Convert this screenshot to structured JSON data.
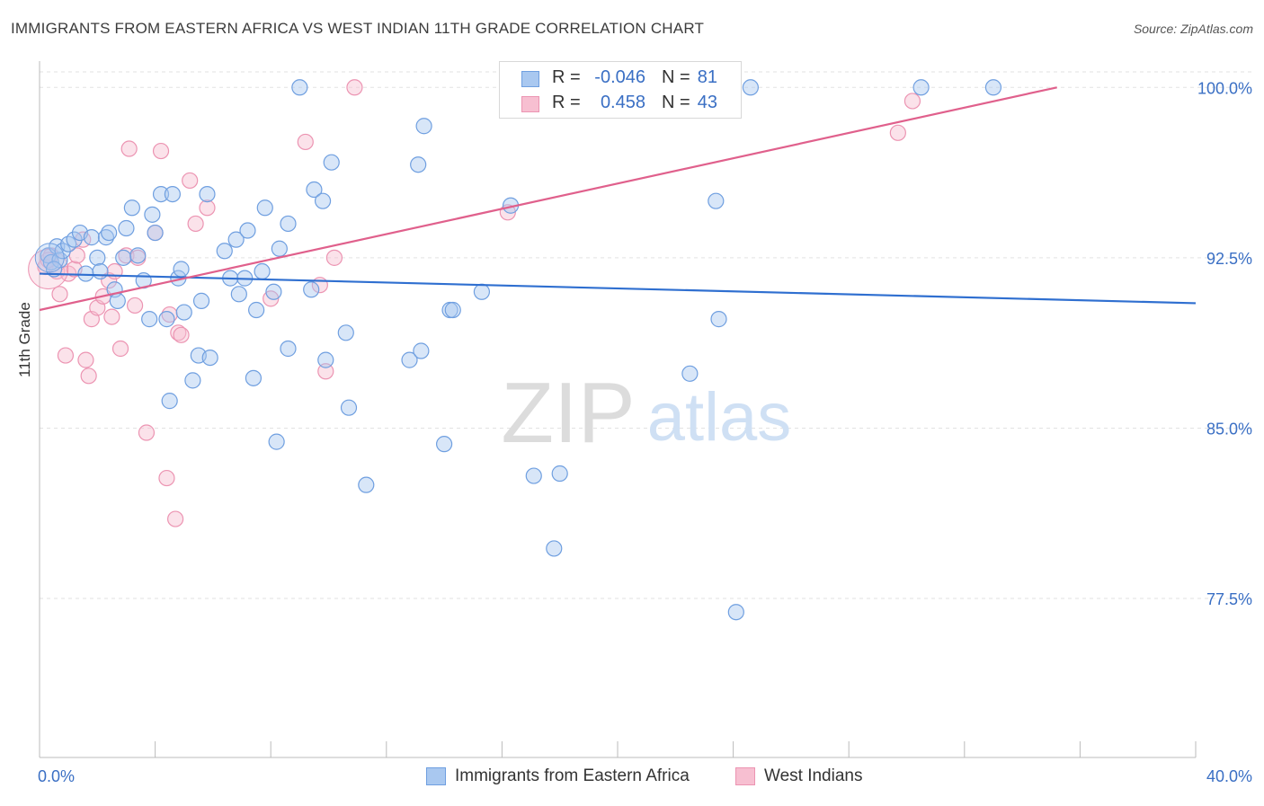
{
  "header": {
    "title": "IMMIGRANTS FROM EASTERN AFRICA VS WEST INDIAN 11TH GRADE CORRELATION CHART",
    "source": "Source: ZipAtlas.com"
  },
  "watermark": {
    "zip": "ZIP",
    "atlas": "atlas"
  },
  "legend": {
    "rows": [
      {
        "r_label": "R =",
        "r_value": "-0.046",
        "n_label": "N =",
        "n_value": "81"
      },
      {
        "r_label": "R =",
        "r_value": "0.458",
        "n_label": "N =",
        "n_value": "43"
      }
    ]
  },
  "colors": {
    "blue_fill": "#a9c8f0",
    "blue_stroke": "#6f9fe0",
    "blue_line": "#2f6fd0",
    "pink_fill": "#f7bfd1",
    "pink_stroke": "#ec94b2",
    "pink_line": "#e0608c",
    "tick_label": "#3a6fc4",
    "grid": "#e2e2e2"
  },
  "chart_data": {
    "type": "scatter",
    "title": "IMMIGRANTS FROM EASTERN AFRICA VS WEST INDIAN 11TH GRADE CORRELATION CHART",
    "xlabel": "",
    "ylabel": "11th Grade",
    "xlim": [
      0,
      40
    ],
    "ylim": [
      70.5,
      101
    ],
    "x_tick_labels": [
      "0.0%",
      "40.0%"
    ],
    "y_ticks": [
      77.5,
      85.0,
      92.5,
      100.0
    ],
    "y_tick_labels": [
      "77.5%",
      "85.0%",
      "92.5%",
      "100.0%"
    ],
    "grid": true,
    "legend_position": "bottom",
    "series": [
      {
        "name": "Immigrants from Eastern Africa",
        "color": "#6f9fe0",
        "trend": {
          "x": [
            0,
            40
          ],
          "y": [
            91.8,
            90.5
          ]
        },
        "points": [
          [
            0.3,
            92.6
          ],
          [
            0.4,
            92.3
          ],
          [
            0.6,
            93.0
          ],
          [
            0.7,
            92.4
          ],
          [
            0.8,
            92.8
          ],
          [
            1.0,
            93.1
          ],
          [
            1.2,
            93.3
          ],
          [
            1.4,
            93.6
          ],
          [
            1.6,
            91.8
          ],
          [
            1.8,
            93.4
          ],
          [
            2.0,
            92.5
          ],
          [
            2.1,
            91.9
          ],
          [
            2.3,
            93.4
          ],
          [
            2.4,
            93.6
          ],
          [
            2.6,
            91.1
          ],
          [
            2.7,
            90.6
          ],
          [
            2.9,
            92.5
          ],
          [
            3.0,
            93.8
          ],
          [
            3.2,
            94.7
          ],
          [
            3.4,
            92.6
          ],
          [
            3.6,
            91.5
          ],
          [
            3.8,
            89.8
          ],
          [
            3.9,
            94.4
          ],
          [
            4.0,
            93.6
          ],
          [
            4.2,
            95.3
          ],
          [
            4.4,
            89.8
          ],
          [
            4.5,
            86.2
          ],
          [
            4.6,
            95.3
          ],
          [
            4.8,
            91.6
          ],
          [
            4.9,
            92.0
          ],
          [
            5.0,
            90.1
          ],
          [
            5.3,
            87.1
          ],
          [
            5.5,
            88.2
          ],
          [
            5.6,
            90.6
          ],
          [
            5.8,
            95.3
          ],
          [
            5.9,
            88.1
          ],
          [
            6.4,
            92.8
          ],
          [
            6.6,
            91.6
          ],
          [
            6.8,
            93.3
          ],
          [
            6.9,
            90.9
          ],
          [
            7.1,
            91.6
          ],
          [
            7.2,
            93.7
          ],
          [
            7.4,
            87.2
          ],
          [
            7.5,
            90.2
          ],
          [
            7.7,
            91.9
          ],
          [
            7.8,
            94.7
          ],
          [
            8.1,
            91.0
          ],
          [
            8.2,
            84.4
          ],
          [
            8.3,
            92.9
          ],
          [
            8.6,
            88.5
          ],
          [
            8.6,
            94.0
          ],
          [
            9.0,
            100.0
          ],
          [
            9.4,
            91.1
          ],
          [
            9.5,
            95.5
          ],
          [
            9.8,
            95.0
          ],
          [
            9.9,
            88.0
          ],
          [
            10.1,
            96.7
          ],
          [
            10.6,
            89.2
          ],
          [
            10.7,
            85.9
          ],
          [
            11.3,
            82.5
          ],
          [
            12.8,
            88.0
          ],
          [
            13.1,
            96.6
          ],
          [
            13.2,
            88.4
          ],
          [
            13.3,
            98.3
          ],
          [
            14.0,
            84.3
          ],
          [
            14.2,
            90.2
          ],
          [
            14.3,
            90.2
          ],
          [
            15.3,
            91.0
          ],
          [
            16.3,
            94.8
          ],
          [
            17.1,
            82.9
          ],
          [
            17.4,
            100.0
          ],
          [
            17.8,
            79.7
          ],
          [
            18.0,
            83.0
          ],
          [
            22.5,
            87.4
          ],
          [
            23.4,
            95.0
          ],
          [
            23.5,
            89.8
          ],
          [
            24.1,
            76.9
          ],
          [
            24.6,
            100.0
          ],
          [
            30.5,
            100.0
          ],
          [
            33.0,
            100.0
          ],
          [
            0.5,
            92.0
          ]
        ]
      },
      {
        "name": "West Indians",
        "color": "#ec94b2",
        "trend": {
          "x": [
            0,
            35.2
          ],
          "y": [
            90.2,
            100.0
          ]
        },
        "points": [
          [
            0.2,
            92.1
          ],
          [
            0.4,
            92.6
          ],
          [
            0.6,
            91.9
          ],
          [
            0.7,
            90.9
          ],
          [
            0.9,
            88.2
          ],
          [
            1.0,
            91.8
          ],
          [
            1.2,
            92.0
          ],
          [
            1.3,
            92.6
          ],
          [
            1.5,
            93.3
          ],
          [
            1.6,
            88.0
          ],
          [
            1.7,
            87.3
          ],
          [
            1.8,
            89.8
          ],
          [
            2.0,
            90.3
          ],
          [
            2.2,
            90.8
          ],
          [
            2.4,
            91.5
          ],
          [
            2.5,
            89.9
          ],
          [
            2.6,
            91.9
          ],
          [
            2.8,
            88.5
          ],
          [
            3.0,
            92.6
          ],
          [
            3.1,
            97.3
          ],
          [
            3.3,
            90.4
          ],
          [
            3.4,
            92.5
          ],
          [
            3.7,
            84.8
          ],
          [
            4.0,
            93.6
          ],
          [
            4.2,
            97.2
          ],
          [
            4.4,
            82.8
          ],
          [
            4.5,
            90.0
          ],
          [
            4.7,
            81.0
          ],
          [
            4.8,
            89.2
          ],
          [
            4.9,
            89.1
          ],
          [
            5.2,
            95.9
          ],
          [
            5.4,
            94.0
          ],
          [
            5.8,
            94.7
          ],
          [
            8.0,
            90.7
          ],
          [
            9.2,
            97.6
          ],
          [
            9.7,
            91.3
          ],
          [
            9.9,
            87.5
          ],
          [
            10.2,
            92.5
          ],
          [
            10.9,
            100.0
          ],
          [
            16.2,
            94.5
          ],
          [
            29.7,
            98.0
          ],
          [
            30.2,
            99.4
          ],
          [
            0.3,
            92.4
          ]
        ]
      }
    ]
  },
  "bottom_legend": {
    "items": [
      {
        "label": "Immigrants from Eastern Africa"
      },
      {
        "label": "West Indians"
      }
    ]
  },
  "axes": {
    "y_label": "11th Grade",
    "x_min_label": "0.0%",
    "x_max_label": "40.0%"
  }
}
